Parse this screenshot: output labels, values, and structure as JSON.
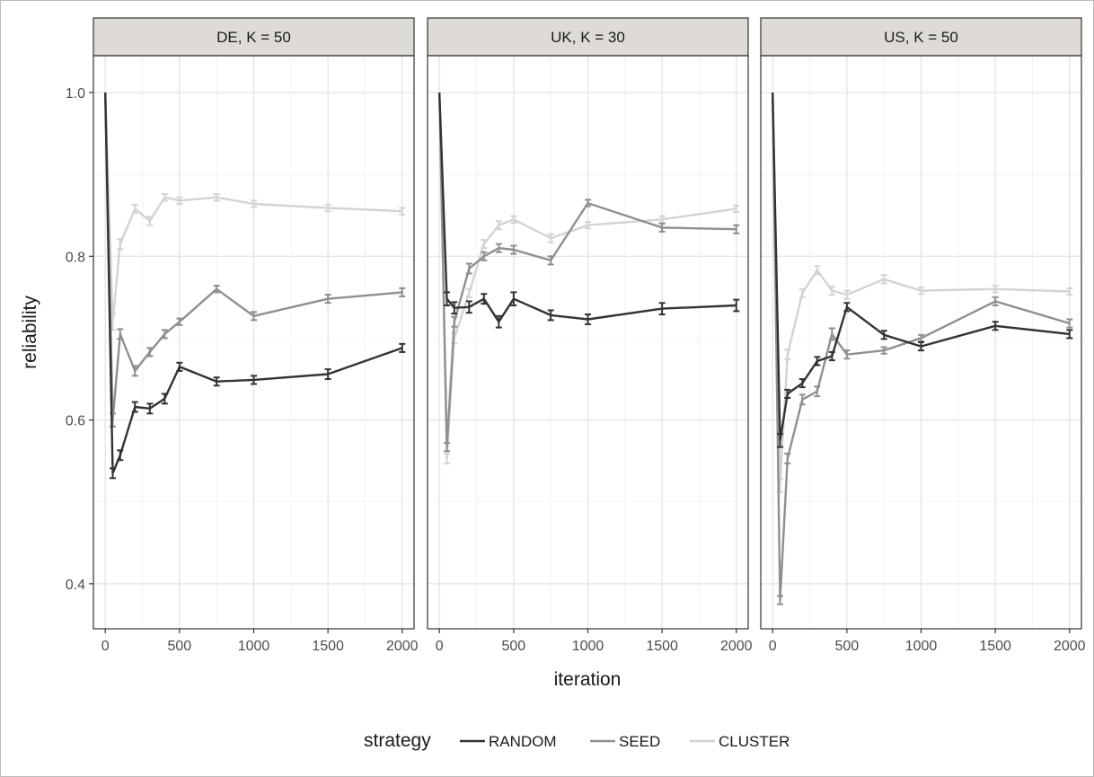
{
  "chart_data": {
    "type": "line",
    "facet_by": "panel",
    "xlabel": "iteration",
    "ylabel": "reliability",
    "xlim": [
      -80,
      2080
    ],
    "ylim": [
      0.345,
      1.045
    ],
    "x_ticks": [
      0,
      500,
      1000,
      1500,
      2000
    ],
    "x_tick_labels": [
      "0",
      "500",
      "1000",
      "1500",
      "2000"
    ],
    "y_ticks": [
      0.4,
      0.6,
      0.8,
      1.0
    ],
    "y_tick_labels": [
      "0.4",
      "0.6",
      "0.8",
      "1.0"
    ],
    "grid": true,
    "legend": {
      "title": "strategy",
      "placement": "bottom",
      "entries": [
        "RANDOM",
        "SEED",
        "CLUSTER"
      ]
    },
    "series_colors": {
      "RANDOM": "#333333",
      "SEED": "#8f8f8f",
      "CLUSTER": "#d3d3d3"
    },
    "x": [
      0,
      50,
      100,
      200,
      300,
      400,
      500,
      750,
      1000,
      1500,
      2000
    ],
    "panels": [
      {
        "label": "DE, K = 50",
        "series": [
          {
            "name": "CLUSTER",
            "values": [
              1.0,
              0.72,
              0.815,
              0.858,
              0.843,
              0.872,
              0.868,
              0.872,
              0.864,
              0.859,
              0.855
            ],
            "err": [
              0,
              0.01,
              0.006,
              0.005,
              0.005,
              0.004,
              0.004,
              0.004,
              0.004,
              0.004,
              0.004
            ]
          },
          {
            "name": "SEED",
            "values": [
              1.0,
              0.6,
              0.705,
              0.66,
              0.683,
              0.705,
              0.72,
              0.76,
              0.727,
              0.748,
              0.756
            ],
            "err": [
              0,
              0.008,
              0.006,
              0.006,
              0.005,
              0.005,
              0.004,
              0.004,
              0.005,
              0.005,
              0.005
            ]
          },
          {
            "name": "RANDOM",
            "values": [
              1.0,
              0.535,
              0.557,
              0.616,
              0.614,
              0.626,
              0.665,
              0.647,
              0.649,
              0.656,
              0.688
            ],
            "err": [
              0,
              0.006,
              0.006,
              0.006,
              0.006,
              0.006,
              0.005,
              0.005,
              0.005,
              0.006,
              0.005
            ]
          }
        ]
      },
      {
        "label": "UK, K = 30",
        "series": [
          {
            "name": "CLUSTER",
            "values": [
              1.0,
              0.553,
              0.7,
              0.755,
              0.815,
              0.838,
              0.845,
              0.822,
              0.838,
              0.845,
              0.858
            ],
            "err": [
              0,
              0.006,
              0.006,
              0.005,
              0.005,
              0.005,
              0.004,
              0.005,
              0.004,
              0.004,
              0.004
            ]
          },
          {
            "name": "SEED",
            "values": [
              1.0,
              0.567,
              0.72,
              0.785,
              0.8,
              0.81,
              0.808,
              0.795,
              0.865,
              0.835,
              0.833
            ],
            "err": [
              0,
              0.005,
              0.006,
              0.006,
              0.005,
              0.005,
              0.005,
              0.005,
              0.004,
              0.005,
              0.005
            ]
          },
          {
            "name": "RANDOM",
            "values": [
              1.0,
              0.748,
              0.737,
              0.738,
              0.748,
              0.72,
              0.748,
              0.728,
              0.723,
              0.736,
              0.74
            ],
            "err": [
              0,
              0.008,
              0.007,
              0.007,
              0.006,
              0.007,
              0.008,
              0.006,
              0.006,
              0.007,
              0.007
            ]
          }
        ]
      },
      {
        "label": "US, K = 50",
        "series": [
          {
            "name": "CLUSTER",
            "values": [
              1.0,
              0.52,
              0.68,
              0.755,
              0.783,
              0.758,
              0.753,
              0.772,
              0.758,
              0.76,
              0.757
            ],
            "err": [
              0,
              0.008,
              0.006,
              0.005,
              0.005,
              0.005,
              0.005,
              0.005,
              0.004,
              0.004,
              0.004
            ]
          },
          {
            "name": "SEED",
            "values": [
              1.0,
              0.38,
              0.553,
              0.625,
              0.635,
              0.705,
              0.68,
              0.685,
              0.7,
              0.745,
              0.718
            ],
            "err": [
              0,
              0.005,
              0.006,
              0.006,
              0.006,
              0.007,
              0.005,
              0.004,
              0.004,
              0.005,
              0.005
            ]
          },
          {
            "name": "RANDOM",
            "values": [
              1.0,
              0.575,
              0.632,
              0.645,
              0.672,
              0.678,
              0.738,
              0.704,
              0.69,
              0.715,
              0.705
            ],
            "err": [
              0,
              0.008,
              0.005,
              0.005,
              0.005,
              0.005,
              0.005,
              0.005,
              0.005,
              0.005,
              0.005
            ]
          }
        ]
      }
    ]
  }
}
